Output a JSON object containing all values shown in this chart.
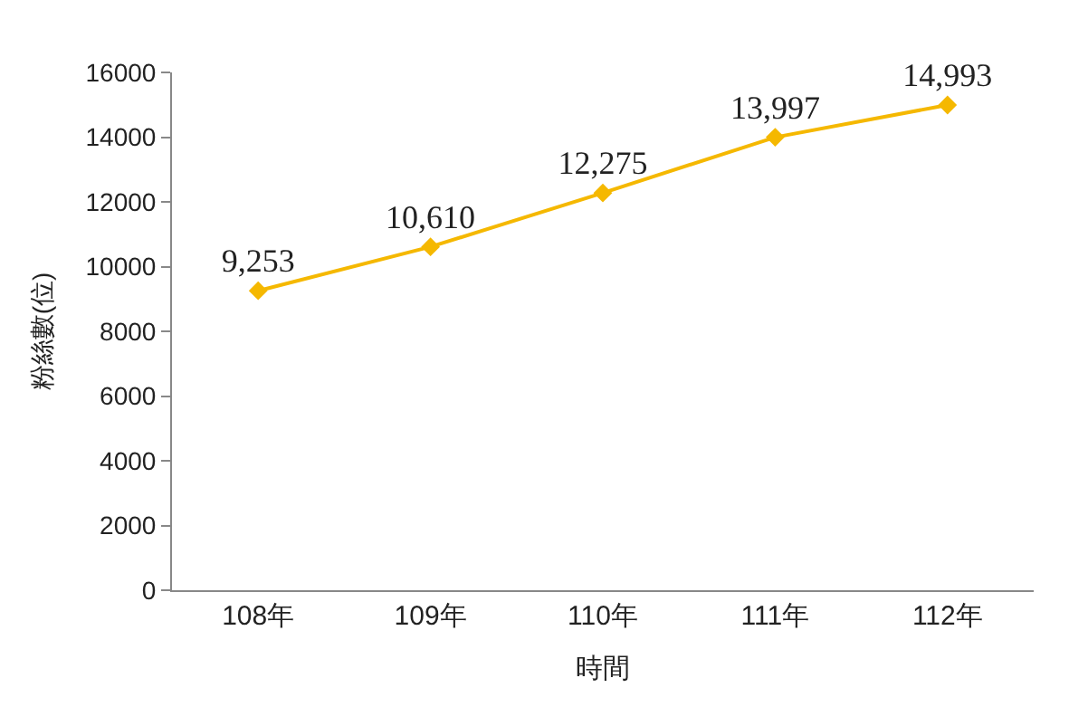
{
  "chart_data": {
    "type": "line",
    "xlabel": "時間",
    "ylabel": "粉絲數(位)",
    "categories": [
      "108年",
      "109年",
      "110年",
      "111年",
      "112年"
    ],
    "series": [
      {
        "color": "#f5b800",
        "values": [
          9253,
          10610,
          12275,
          13997,
          14993
        ],
        "value_labels": [
          "9,253",
          "10,610",
          "12,275",
          "13,997",
          "14,993"
        ]
      }
    ],
    "ylim": [
      0,
      16000
    ],
    "yticks": [
      0,
      2000,
      4000,
      6000,
      8000,
      10000,
      12000,
      14000,
      16000
    ],
    "legend": false,
    "marker": "diamond",
    "line_style": "solid"
  }
}
